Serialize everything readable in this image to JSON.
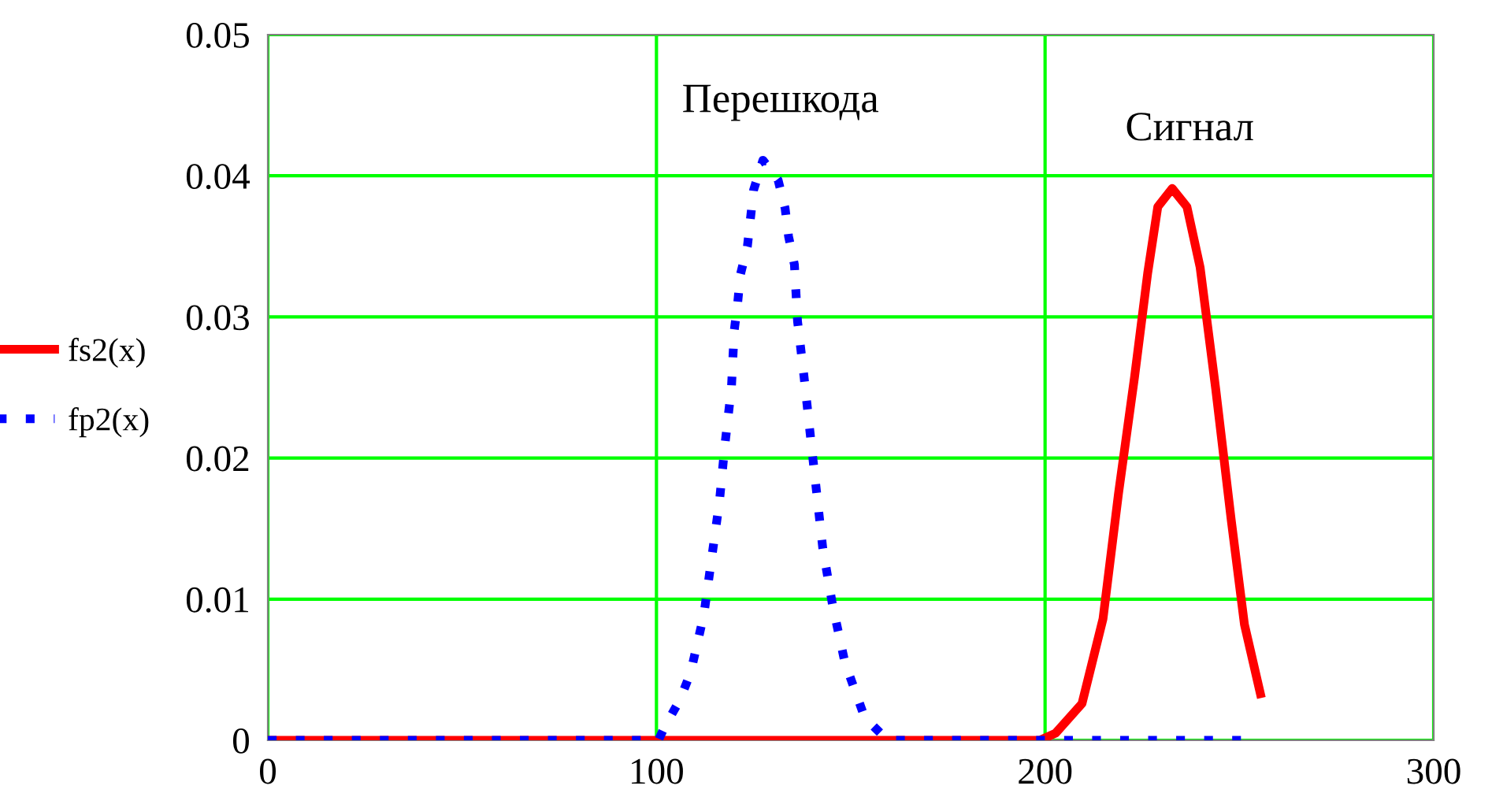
{
  "chart_data": {
    "type": "line",
    "xlim": [
      0,
      300
    ],
    "xticks": [
      0,
      100,
      200,
      300
    ],
    "ylim": [
      0,
      0.05
    ],
    "yticks": [
      0,
      0.01,
      0.02,
      0.03,
      0.04,
      0.05
    ],
    "grid": true,
    "legend": "left",
    "series": [
      {
        "name": "fs2(x)",
        "color": "#ff0000",
        "line_style": "solid",
        "x": [
          0,
          198.6,
          202.7,
          209.5,
          214.9,
          218.9,
          223,
          226.4,
          229,
          232.7,
          236.5,
          239.9,
          243.9,
          247.9,
          251.3,
          255.4
        ],
        "values": [
          0,
          0,
          0.0005,
          0.0026,
          0.0086,
          0.0175,
          0.0257,
          0.0331,
          0.0378,
          0.0391,
          0.0378,
          0.0335,
          0.0249,
          0.0156,
          0.0082,
          0.0033
        ]
      },
      {
        "name": "fp2(x)",
        "color": "#0000ff",
        "line_style": "dotted",
        "x": [
          0,
          100.5,
          102,
          106.1,
          108.8,
          112.2,
          114.2,
          116.2,
          117.6,
          119.3,
          120,
          120.9,
          121.6,
          123.4,
          124.2,
          125,
          127.4,
          131.3,
          133.1,
          134,
          135.5,
          136.3,
          138,
          139.6,
          141.2,
          142.8,
          145.3,
          148.5,
          153.6,
          159.5,
          255
        ],
        "values": [
          0,
          0,
          0.0009,
          0.0029,
          0.0048,
          0.0089,
          0.0129,
          0.0169,
          0.0209,
          0.025,
          0.029,
          0.031,
          0.033,
          0.035,
          0.037,
          0.039,
          0.0411,
          0.0397,
          0.0377,
          0.0357,
          0.0337,
          0.0297,
          0.0257,
          0.0216,
          0.0176,
          0.0136,
          0.0096,
          0.0055,
          0.0016,
          0,
          0
        ]
      }
    ],
    "annotations": [
      "Сигнал",
      "Перешкода"
    ]
  }
}
